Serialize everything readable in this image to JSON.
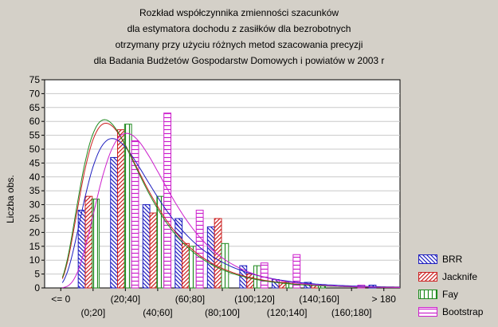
{
  "title_lines": [
    "Rozkład współczynnika zmienności szacunków",
    "dla estymatora dochodu z zasiłków dla bezrobotnych",
    "otrzymany przy użyciu różnych metod szacowania precyzji",
    "dla Badania Budżetów Gospodarstw Domowych i powiatów w 2003 r"
  ],
  "chart_data": {
    "type": "bar",
    "title": "Rozkład współczynnika zmienności szacunków dla estymatora dochodu z zasiłków dla bezrobotnych otrzymany przy użyciu różnych metod szacowania precyzji dla Badania Budżetów Gospodarstw Domowych i powiatów w 2003 r",
    "xlabel": "",
    "ylabel": "Liczba obs.",
    "ylim": [
      0,
      75
    ],
    "yticks": [
      0,
      5,
      10,
      15,
      20,
      25,
      30,
      35,
      40,
      45,
      50,
      55,
      60,
      65,
      70,
      75
    ],
    "grid": true,
    "legend_position": "bottom-right",
    "categories": [
      "<= 0",
      "(0;20]",
      "(20;40]",
      "(40;60]",
      "(60;80]",
      "(80;100]",
      "(100;120]",
      "(120;140]",
      "(140;160]",
      "(160;180]",
      "> 180"
    ],
    "series": [
      {
        "name": "BRR",
        "color": "#1f1fbf",
        "pattern": "diag-back",
        "values": [
          0,
          28,
          47,
          30,
          25,
          22,
          8,
          3,
          2,
          0,
          1
        ]
      },
      {
        "name": "Jacknife",
        "color": "#cc1f1f",
        "pattern": "diag-fwd",
        "values": [
          0,
          33,
          57,
          27,
          16,
          25,
          5,
          2,
          1,
          0,
          0
        ]
      },
      {
        "name": "Fay",
        "color": "#1f8a1f",
        "pattern": "vertical",
        "values": [
          0,
          32,
          59,
          33,
          15,
          16,
          8,
          2,
          1,
          0,
          0
        ]
      },
      {
        "name": "Bootstrap",
        "color": "#cc1fcc",
        "pattern": "horizontal",
        "values": [
          0,
          0,
          53,
          63,
          28,
          0,
          9,
          12,
          0,
          1,
          0
        ]
      }
    ]
  }
}
